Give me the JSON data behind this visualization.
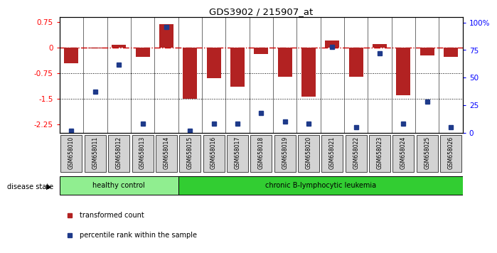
{
  "title": "GDS3902 / 215907_at",
  "samples": [
    "GSM658010",
    "GSM658011",
    "GSM658012",
    "GSM658013",
    "GSM658014",
    "GSM658015",
    "GSM658016",
    "GSM658017",
    "GSM658018",
    "GSM658019",
    "GSM658020",
    "GSM658021",
    "GSM658022",
    "GSM658023",
    "GSM658024",
    "GSM658025",
    "GSM658026"
  ],
  "bar_values": [
    -0.45,
    -0.02,
    0.08,
    -0.28,
    0.68,
    -1.5,
    -0.9,
    -1.15,
    -0.18,
    -0.85,
    -1.45,
    0.2,
    -0.85,
    0.1,
    -1.4,
    -0.22,
    -0.28
  ],
  "percentile_values": [
    2,
    37,
    62,
    8,
    96,
    2,
    8,
    8,
    18,
    10,
    8,
    78,
    5,
    72,
    8,
    28,
    5
  ],
  "bar_color": "#b22222",
  "dot_color": "#1e3a8a",
  "zero_line_color": "#cc0000",
  "ylim_left": [
    -2.5,
    0.9
  ],
  "ylim_right": [
    0,
    105
  ],
  "yticks_left": [
    0.75,
    0.0,
    -0.75,
    -1.5,
    -2.25
  ],
  "yticks_right": [
    100,
    75,
    50,
    25,
    0
  ],
  "ytick_labels_right": [
    "100%",
    "75",
    "50",
    "25",
    "0"
  ],
  "hlines": [
    -0.75,
    -1.5
  ],
  "disease_groups": [
    {
      "label": "healthy control",
      "start": 0,
      "end": 5,
      "color": "#90ee90"
    },
    {
      "label": "chronic B-lymphocytic leukemia",
      "start": 5,
      "end": 17,
      "color": "#32cd32"
    }
  ],
  "legend_items": [
    {
      "label": "transformed count",
      "color": "#b22222"
    },
    {
      "label": "percentile rank within the sample",
      "color": "#1e3a8a"
    }
  ],
  "disease_state_label": "disease state",
  "bar_width": 0.6
}
